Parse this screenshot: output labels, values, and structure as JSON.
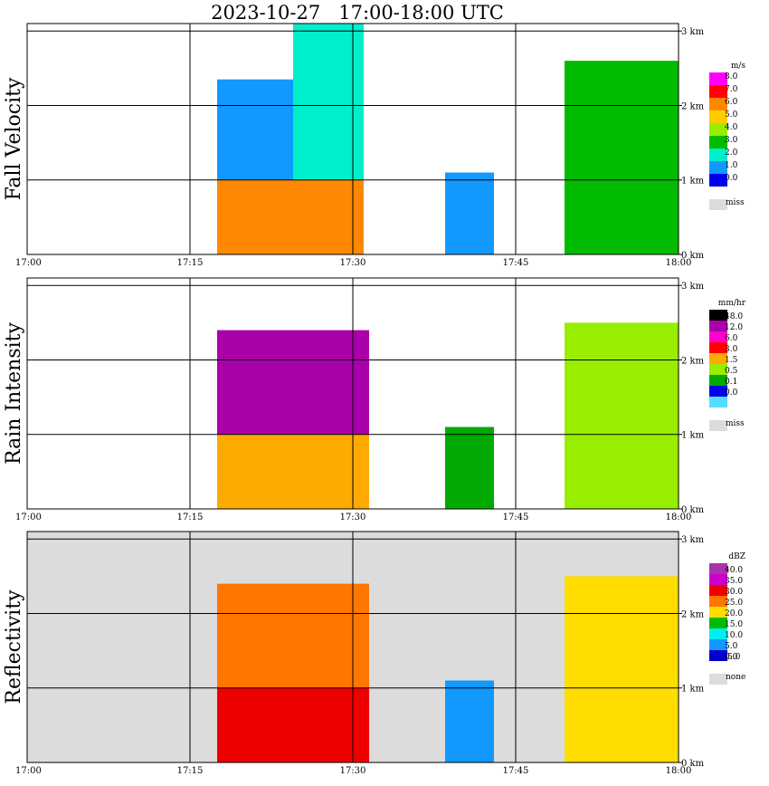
{
  "title": "2023-10-27   17:00-18:00 UTC",
  "x_ticks": [
    "17:00",
    "17:15",
    "17:30",
    "17:45",
    "18:00"
  ],
  "y_ticks": [
    "0 km",
    "1 km",
    "2 km",
    "3 km"
  ],
  "chart_data": [
    {
      "type": "heatmap",
      "title": "Fall Velocity",
      "legend_unit": "m/s",
      "legend_levels": [
        "8.0",
        "7.0",
        "6.0",
        "5.0",
        "4.0",
        "3.0",
        "2.0",
        "1.0",
        "0.0"
      ],
      "legend_colors": [
        "#ff00ff",
        "#ff0000",
        "#ff8800",
        "#ffcc00",
        "#99ee00",
        "#00bb00",
        "#00eecc",
        "#1199ff",
        "#0000ee"
      ],
      "missing_label": "miss",
      "missing_color": "#dcdcdc",
      "x_range_minutes": [
        0,
        60
      ],
      "y_range_km": [
        0,
        3.1
      ],
      "echoes": [
        {
          "start_min": 17.5,
          "end_min": 28.0,
          "top_km": 2.35,
          "band_top_km": 1.0,
          "lower_level": "6.0",
          "upper_level": "1.0"
        },
        {
          "start_min": 24.5,
          "end_min": 31.0,
          "top_km": 3.1,
          "band_top_km": 1.0,
          "lower_level": "6.0",
          "upper_level": "2.0"
        },
        {
          "start_min": 38.5,
          "end_min": 43.0,
          "top_km": 1.1,
          "band_top_km": 0.0,
          "lower_level": "2.0",
          "upper_level": "1.0"
        },
        {
          "start_min": 49.5,
          "end_min": 60.0,
          "top_km": 2.6,
          "band_top_km": 0.0,
          "lower_level": "4.0",
          "upper_level": "3.0"
        }
      ]
    },
    {
      "type": "heatmap",
      "title": "Rain Intensity",
      "legend_unit": "mm/hr",
      "legend_levels": [
        "48.0",
        "12.0",
        "6.0",
        "3.0",
        "1.5",
        "0.5",
        "0.1",
        "0.0"
      ],
      "legend_colors": [
        "#000000",
        "#aa00aa",
        "#ff00cc",
        "#ff0000",
        "#ffaa00",
        "#99ee00",
        "#00aa00",
        "#0000ee",
        "#55ddff"
      ],
      "missing_label": "miss",
      "missing_color": "#dcdcdc",
      "x_range_minutes": [
        0,
        60
      ],
      "y_range_km": [
        0,
        3.1
      ],
      "echoes": [
        {
          "start_min": 17.5,
          "end_min": 31.5,
          "top_km": 2.4,
          "band_top_km": 1.0,
          "lower_level": "1.5",
          "upper_level": "12.0"
        },
        {
          "start_min": 38.5,
          "end_min": 43.0,
          "top_km": 1.1,
          "band_top_km": 0.0,
          "lower_level": "0.5",
          "upper_level": "0.1"
        },
        {
          "start_min": 49.5,
          "end_min": 60.0,
          "top_km": 2.5,
          "band_top_km": 0.0,
          "lower_level": "12.0",
          "upper_level": "0.5"
        }
      ]
    },
    {
      "type": "heatmap",
      "title": "Reflectivity",
      "legend_unit": "dBZ",
      "legend_levels": [
        "40.0",
        "35.0",
        "30.0",
        "25.0",
        "20.0",
        "15.0",
        "10.0",
        "5.0",
        "0.0",
        "-5.0"
      ],
      "legend_colors": [
        "#aa33aa",
        "#cc00cc",
        "#ee0000",
        "#ff7700",
        "#ffdd00",
        "#00bb00",
        "#00eeee",
        "#1199ff",
        "#0000cc"
      ],
      "missing_label": "none",
      "missing_color": "#dcdcdc",
      "x_range_minutes": [
        0,
        60
      ],
      "y_range_km": [
        0,
        3.1
      ],
      "echoes": [
        {
          "start_min": 17.5,
          "end_min": 31.5,
          "top_km": 2.4,
          "band_top_km": 1.0,
          "lower_level": "30.0",
          "upper_level": "25.0"
        },
        {
          "start_min": 38.5,
          "end_min": 43.0,
          "top_km": 1.1,
          "band_top_km": 0.0,
          "lower_level": "10.0",
          "upper_level": "5.0"
        },
        {
          "start_min": 49.5,
          "end_min": 60.0,
          "top_km": 2.5,
          "band_top_km": 0.0,
          "lower_level": "35.0",
          "upper_level": "20.0"
        }
      ]
    }
  ]
}
